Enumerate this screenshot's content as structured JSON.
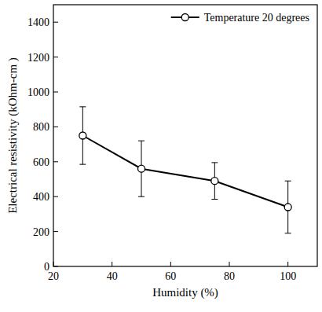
{
  "chart_data": {
    "type": "line",
    "x_label": "Humidity (%)",
    "y_label": "Electrical resistivity (kOhm-cm )",
    "x": [
      30,
      50,
      75,
      100
    ],
    "series": [
      {
        "name": "Temperature 20 degrees",
        "color": "#000000",
        "marker": "circle",
        "line_style": "solid",
        "values": [
          750,
          560,
          490,
          340
        ],
        "errors": [
          165,
          160,
          105,
          150
        ]
      }
    ],
    "xlim": [
      20,
      110
    ],
    "xticks": [
      20,
      40,
      60,
      80,
      100
    ],
    "ylim": [
      0,
      1500
    ],
    "yticks": [
      0,
      200,
      400,
      600,
      800,
      1000,
      1200,
      1400
    ],
    "grid": false,
    "legend": "upper right"
  }
}
